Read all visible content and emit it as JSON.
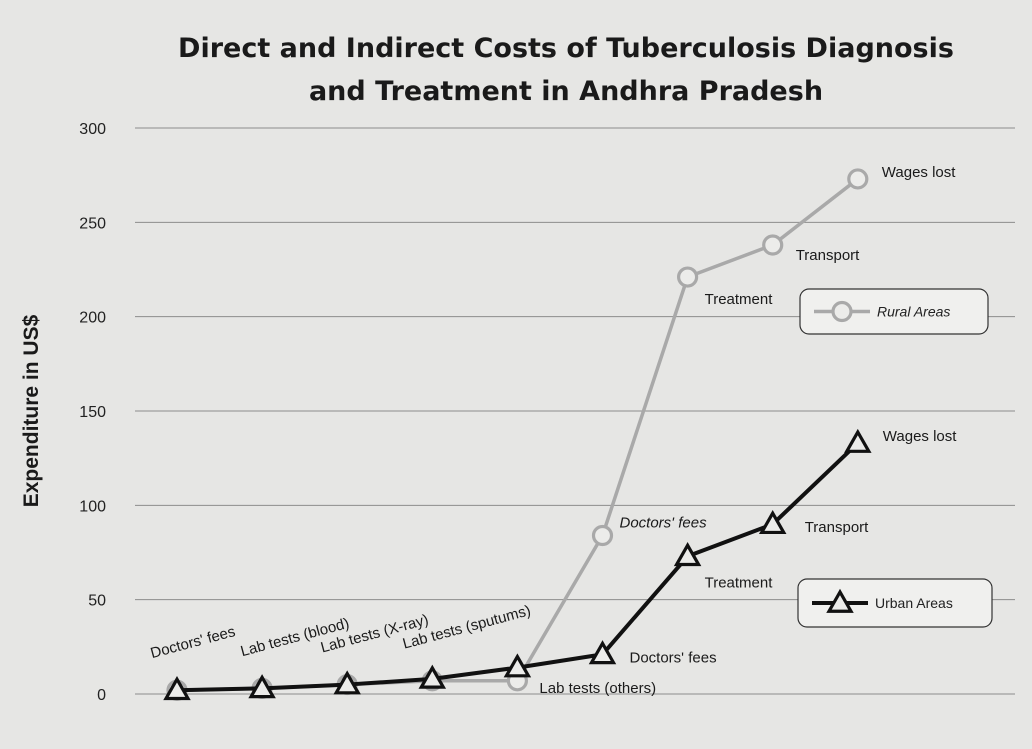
{
  "chart_data": {
    "type": "line",
    "title": [
      "Direct and Indirect Costs of Tuberculosis Diagnosis",
      "and Treatment in Andhra Pradesh"
    ],
    "xlabel": "",
    "ylabel": "Expenditure in US$",
    "ylim": [
      0,
      300
    ],
    "yticks": [
      0,
      50,
      100,
      150,
      200,
      250,
      300
    ],
    "grid": true,
    "legend_placement": "right",
    "series": [
      {
        "name": "Rural Areas",
        "marker": "circle",
        "color": "#a9a9a9",
        "points": [
          {
            "x": 1,
            "y": 2,
            "label": "Doctors' fees"
          },
          {
            "x": 2,
            "y": 3,
            "label": "Lab tests (blood)"
          },
          {
            "x": 3,
            "y": 5,
            "label": "Lab tests (X-ray)"
          },
          {
            "x": 4,
            "y": 7,
            "label": "Lab tests (sputums)"
          },
          {
            "x": 5,
            "y": 7,
            "label": "Lab tests (others)"
          },
          {
            "x": 6,
            "y": 84,
            "label": "Doctors' fees"
          },
          {
            "x": 7,
            "y": 221,
            "label": "Treatment"
          },
          {
            "x": 8,
            "y": 238,
            "label": "Transport"
          },
          {
            "x": 9,
            "y": 273,
            "label": "Wages lost"
          }
        ]
      },
      {
        "name": "Urban Areas",
        "marker": "triangle",
        "color": "#111111",
        "points": [
          {
            "x": 1,
            "y": 2,
            "label": ""
          },
          {
            "x": 2,
            "y": 3,
            "label": ""
          },
          {
            "x": 3,
            "y": 5,
            "label": ""
          },
          {
            "x": 4,
            "y": 8,
            "label": ""
          },
          {
            "x": 5,
            "y": 14,
            "label": ""
          },
          {
            "x": 6,
            "y": 21,
            "label": "Doctors' fees"
          },
          {
            "x": 7,
            "y": 73,
            "label": "Treatment"
          },
          {
            "x": 8,
            "y": 90,
            "label": "Transport"
          },
          {
            "x": 9,
            "y": 133,
            "label": "Wages lost"
          }
        ]
      }
    ]
  }
}
